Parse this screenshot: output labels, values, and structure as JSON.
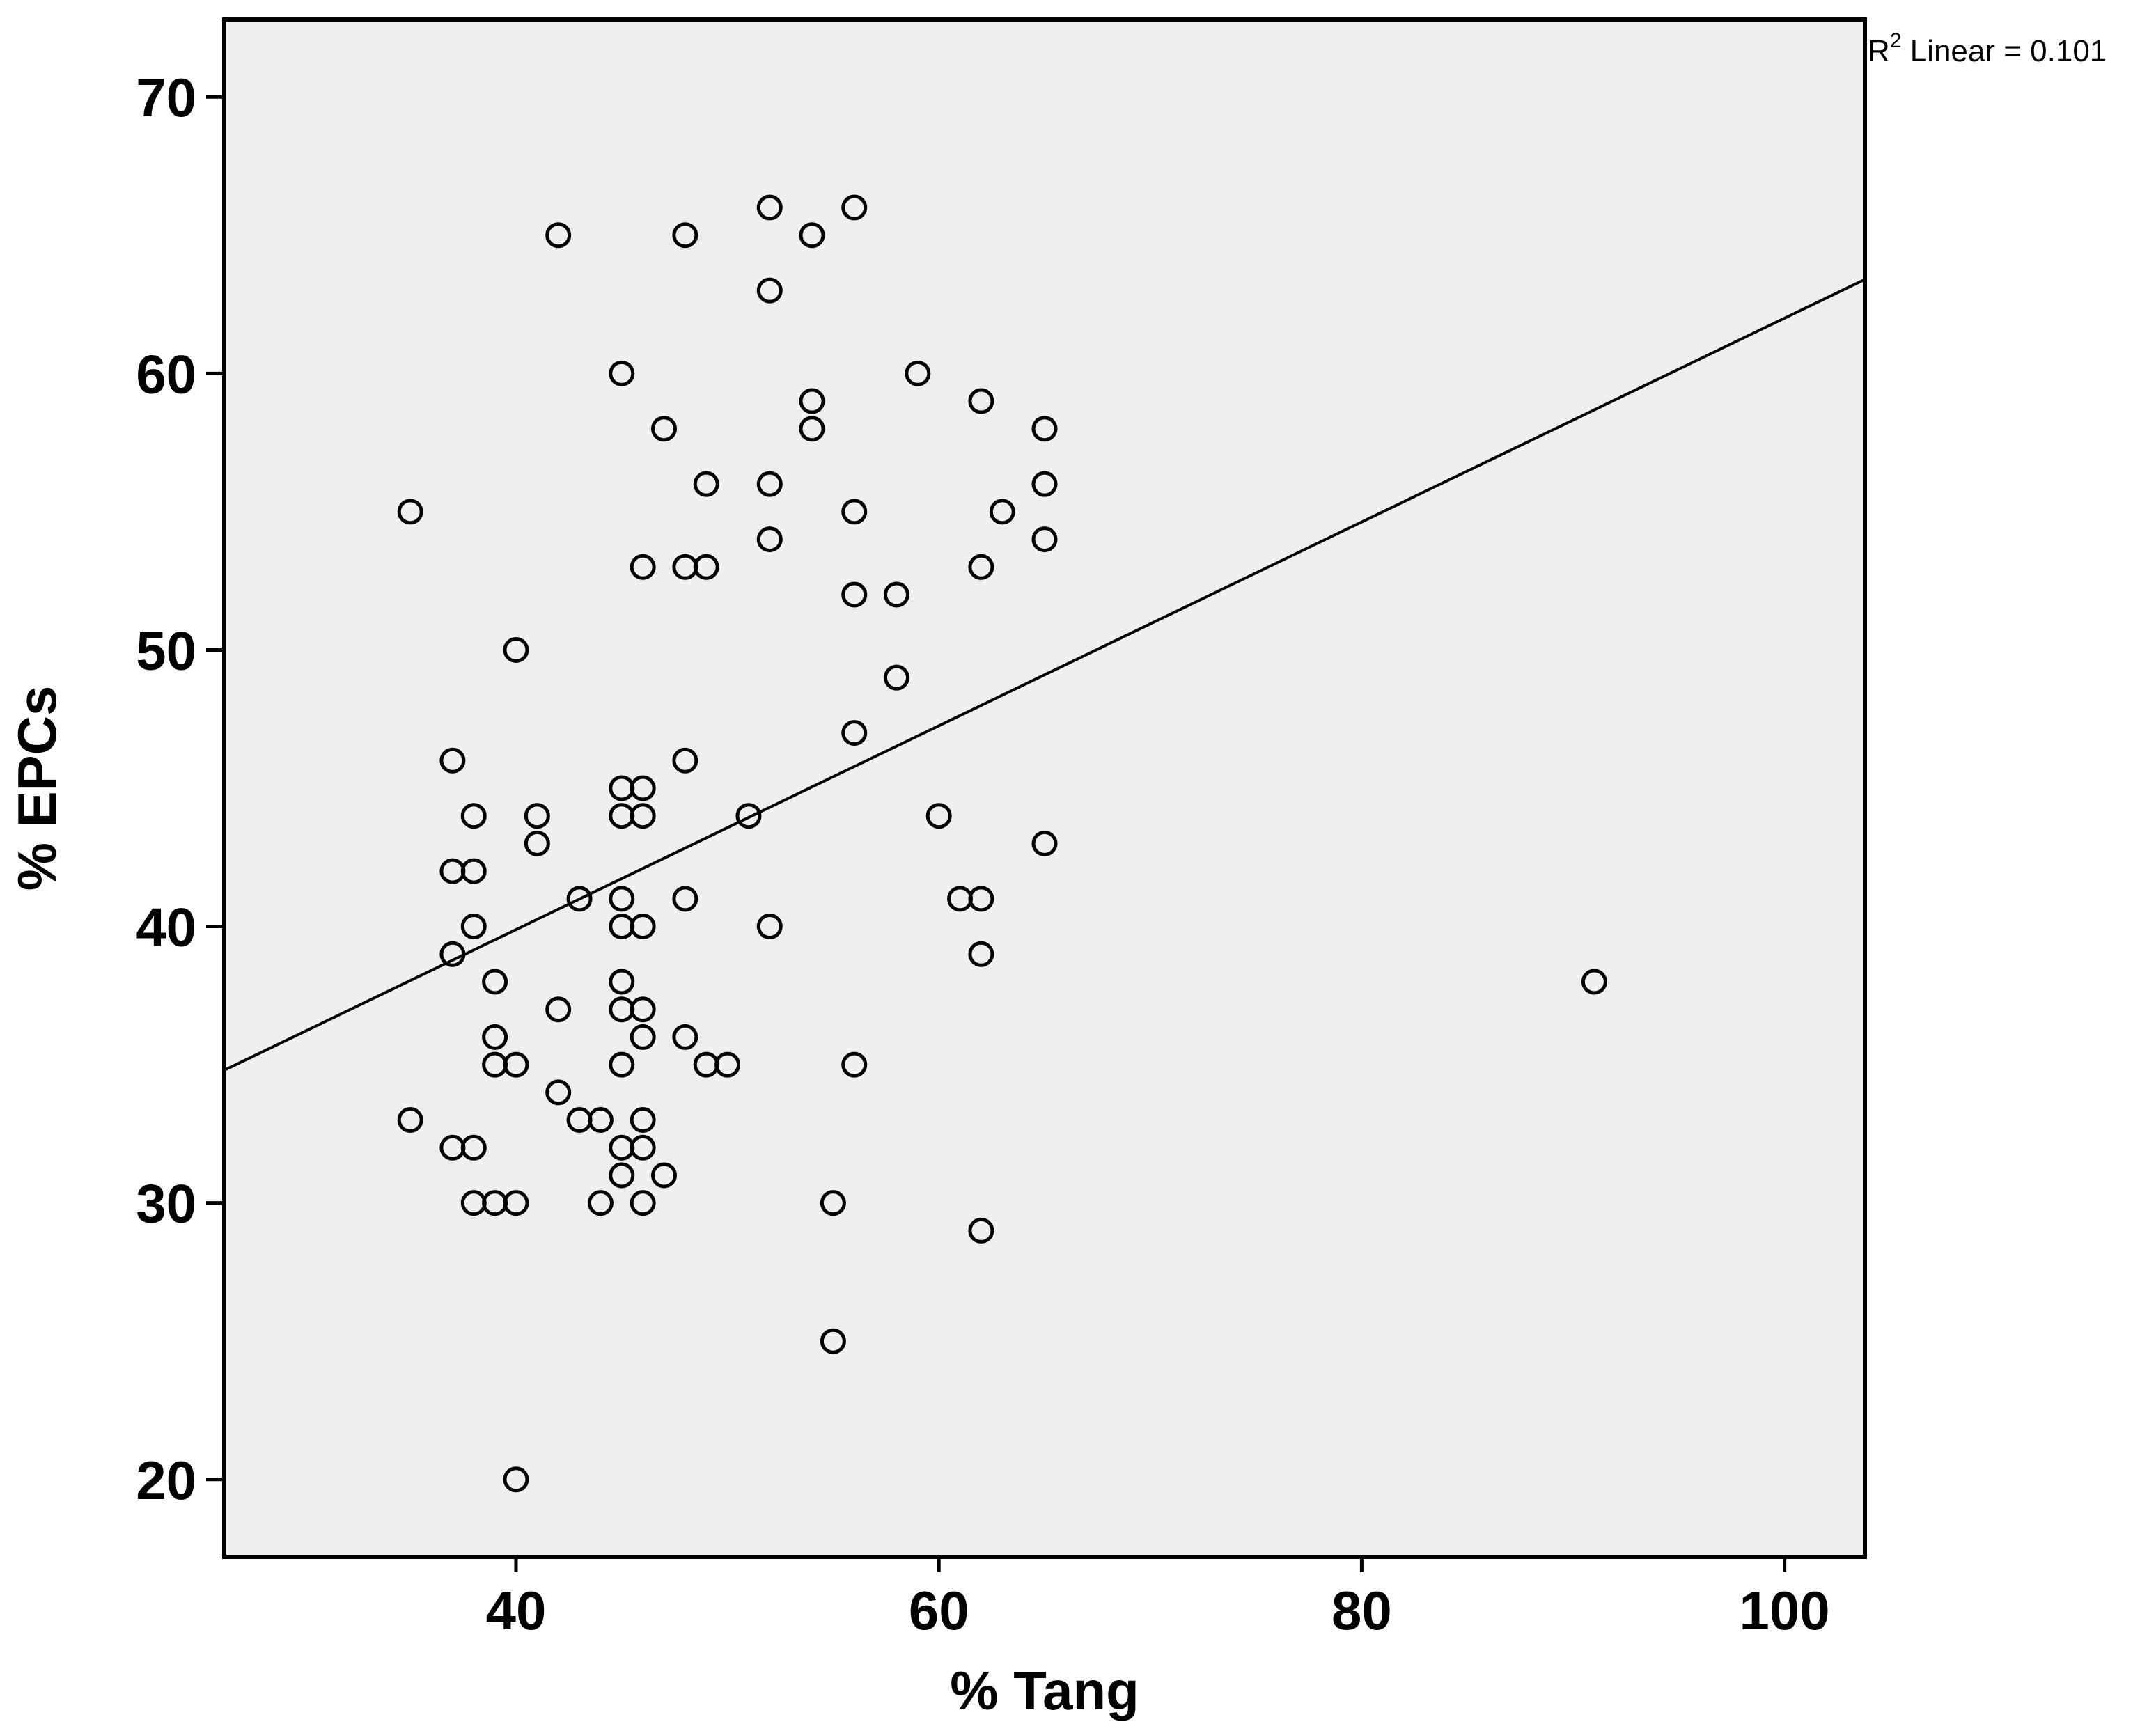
{
  "chart_data": {
    "type": "scatter",
    "title": "",
    "xlabel": "% Tang",
    "ylabel": "% EPCs",
    "xlim": [
      26.2,
      103.8
    ],
    "ylim": [
      17.2,
      72.8
    ],
    "xticks": [
      40,
      60,
      80,
      100
    ],
    "yticks": [
      20,
      30,
      40,
      50,
      60,
      70
    ],
    "xtick_labels": [
      "40",
      "60",
      "80",
      "100"
    ],
    "ytick_labels": [
      "20",
      "30",
      "40",
      "50",
      "60",
      "70"
    ],
    "grid": false,
    "background": "#efefef",
    "fit_line": {
      "label_prefix": "R",
      "label_sup": "2",
      "label_suffix": " Linear = 0.101",
      "x": [
        26.2,
        103.8
      ],
      "y": [
        34.8,
        63.4
      ]
    },
    "points": [
      {
        "x": 42,
        "y": 65
      },
      {
        "x": 48,
        "y": 65
      },
      {
        "x": 52,
        "y": 66
      },
      {
        "x": 54,
        "y": 65
      },
      {
        "x": 56,
        "y": 66
      },
      {
        "x": 52,
        "y": 63
      },
      {
        "x": 45,
        "y": 60
      },
      {
        "x": 59,
        "y": 60
      },
      {
        "x": 54,
        "y": 59
      },
      {
        "x": 62,
        "y": 59
      },
      {
        "x": 47,
        "y": 58
      },
      {
        "x": 54,
        "y": 58
      },
      {
        "x": 65,
        "y": 58
      },
      {
        "x": 49,
        "y": 56
      },
      {
        "x": 52,
        "y": 56
      },
      {
        "x": 65,
        "y": 56
      },
      {
        "x": 35,
        "y": 55
      },
      {
        "x": 56,
        "y": 55
      },
      {
        "x": 63,
        "y": 55
      },
      {
        "x": 52,
        "y": 54
      },
      {
        "x": 65,
        "y": 54
      },
      {
        "x": 46,
        "y": 53
      },
      {
        "x": 48,
        "y": 53
      },
      {
        "x": 49,
        "y": 53
      },
      {
        "x": 62,
        "y": 53
      },
      {
        "x": 56,
        "y": 52
      },
      {
        "x": 58,
        "y": 52
      },
      {
        "x": 40,
        "y": 50
      },
      {
        "x": 58,
        "y": 49
      },
      {
        "x": 56,
        "y": 47
      },
      {
        "x": 37,
        "y": 46
      },
      {
        "x": 48,
        "y": 46
      },
      {
        "x": 45,
        "y": 45
      },
      {
        "x": 46,
        "y": 45
      },
      {
        "x": 38,
        "y": 44
      },
      {
        "x": 41,
        "y": 44
      },
      {
        "x": 45,
        "y": 44
      },
      {
        "x": 46,
        "y": 44
      },
      {
        "x": 51,
        "y": 44
      },
      {
        "x": 60,
        "y": 44
      },
      {
        "x": 41,
        "y": 43
      },
      {
        "x": 65,
        "y": 43
      },
      {
        "x": 37,
        "y": 42
      },
      {
        "x": 38,
        "y": 42
      },
      {
        "x": 43,
        "y": 41
      },
      {
        "x": 45,
        "y": 41
      },
      {
        "x": 48,
        "y": 41
      },
      {
        "x": 61,
        "y": 41
      },
      {
        "x": 62,
        "y": 41
      },
      {
        "x": 38,
        "y": 40
      },
      {
        "x": 45,
        "y": 40
      },
      {
        "x": 46,
        "y": 40
      },
      {
        "x": 52,
        "y": 40
      },
      {
        "x": 37,
        "y": 39
      },
      {
        "x": 62,
        "y": 39
      },
      {
        "x": 39,
        "y": 38
      },
      {
        "x": 45,
        "y": 38
      },
      {
        "x": 91,
        "y": 38
      },
      {
        "x": 42,
        "y": 37
      },
      {
        "x": 45,
        "y": 37
      },
      {
        "x": 46,
        "y": 37
      },
      {
        "x": 39,
        "y": 36
      },
      {
        "x": 46,
        "y": 36
      },
      {
        "x": 48,
        "y": 36
      },
      {
        "x": 39,
        "y": 35
      },
      {
        "x": 40,
        "y": 35
      },
      {
        "x": 45,
        "y": 35
      },
      {
        "x": 49,
        "y": 35
      },
      {
        "x": 50,
        "y": 35
      },
      {
        "x": 56,
        "y": 35
      },
      {
        "x": 42,
        "y": 34
      },
      {
        "x": 35,
        "y": 33
      },
      {
        "x": 43,
        "y": 33
      },
      {
        "x": 44,
        "y": 33
      },
      {
        "x": 46,
        "y": 33
      },
      {
        "x": 37,
        "y": 32
      },
      {
        "x": 38,
        "y": 32
      },
      {
        "x": 45,
        "y": 32
      },
      {
        "x": 46,
        "y": 32
      },
      {
        "x": 45,
        "y": 31
      },
      {
        "x": 47,
        "y": 31
      },
      {
        "x": 38,
        "y": 30
      },
      {
        "x": 39,
        "y": 30
      },
      {
        "x": 40,
        "y": 30
      },
      {
        "x": 44,
        "y": 30
      },
      {
        "x": 46,
        "y": 30
      },
      {
        "x": 55,
        "y": 30
      },
      {
        "x": 62,
        "y": 29
      },
      {
        "x": 55,
        "y": 25
      },
      {
        "x": 40,
        "y": 20
      }
    ]
  }
}
